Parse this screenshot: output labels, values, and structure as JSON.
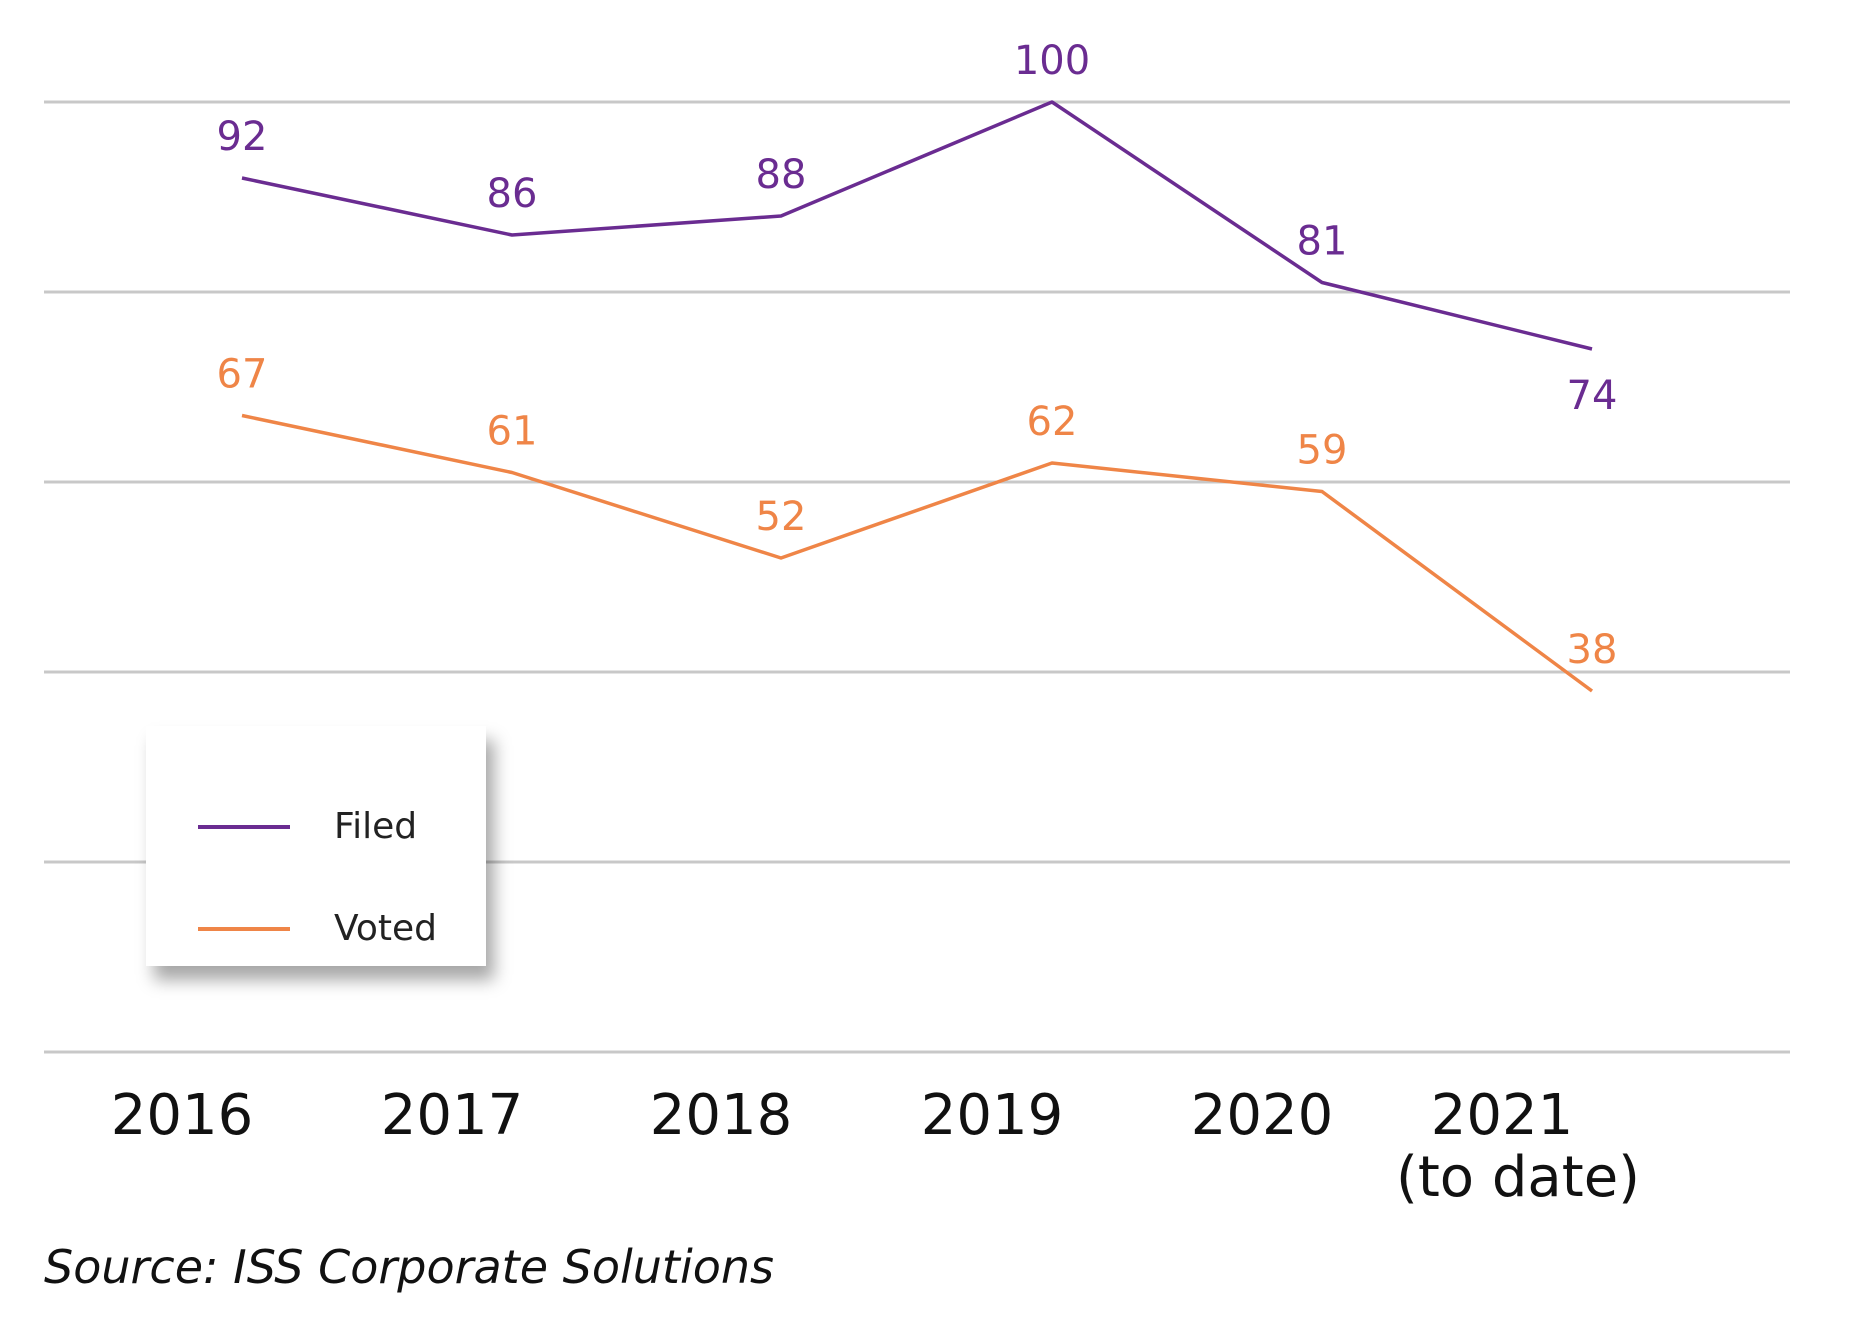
{
  "chart_data": {
    "type": "line",
    "categories": [
      "2016",
      "2017",
      "2018",
      "2019",
      "2020",
      [
        "2021",
        "(to date)"
      ]
    ],
    "series": [
      {
        "name": "Filed",
        "color": "#6a2c91",
        "values": [
          92,
          86,
          88,
          100,
          81,
          74
        ]
      },
      {
        "name": "Voted",
        "color": "#ef8547",
        "values": [
          67,
          61,
          52,
          62,
          59,
          38
        ]
      }
    ],
    "ylim": [
      0,
      100
    ],
    "grid": true,
    "legend_position": "bottom-left"
  },
  "source": "Source: ISS Corporate Solutions"
}
